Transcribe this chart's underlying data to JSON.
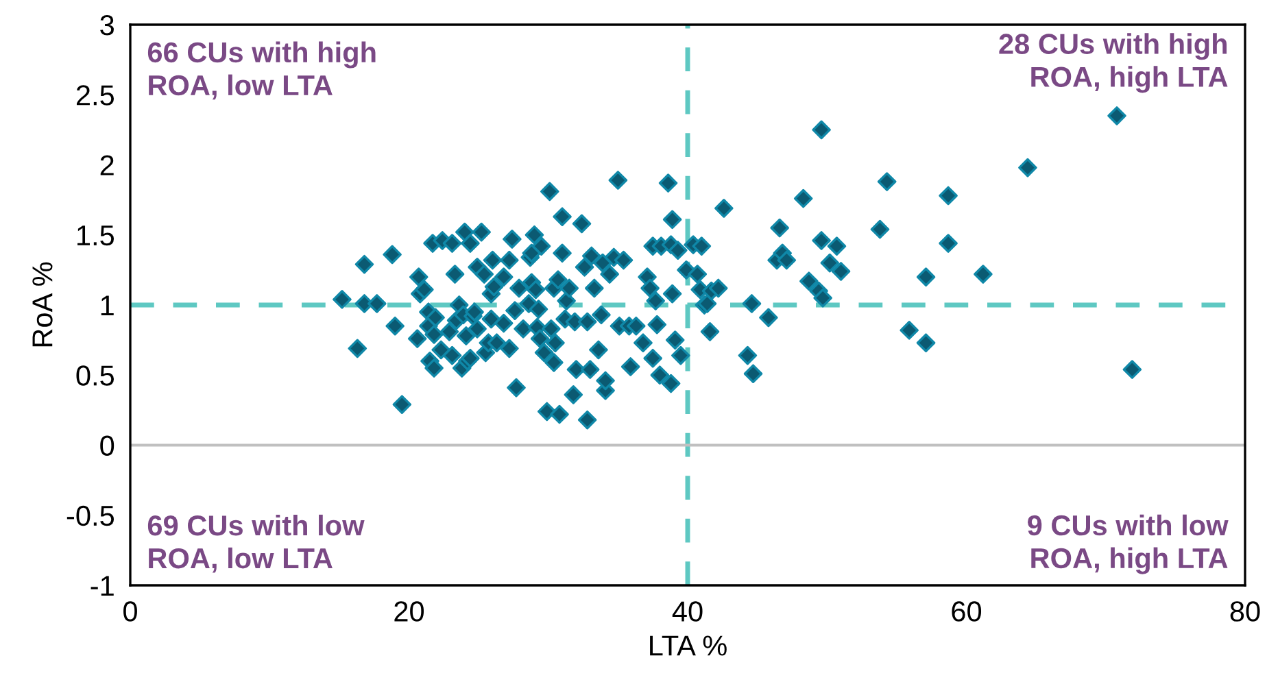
{
  "chart_data": {
    "type": "scatter",
    "xlabel": "LTA %",
    "ylabel": "RoA %",
    "xlim": [
      0,
      80
    ],
    "xticks": [
      0,
      20,
      40,
      60,
      80
    ],
    "ylim": [
      -1,
      3
    ],
    "yticks": [
      -1,
      -0.5,
      0,
      0.5,
      1,
      1.5,
      2,
      2.5,
      3
    ],
    "grid": false,
    "marker": "diamond",
    "series": [
      {
        "color": "#0b5a72",
        "x": [
          15.2,
          16.3,
          16.8,
          16.8,
          17.7,
          18.8,
          19.0,
          19.5,
          20.6,
          20.7,
          20.8,
          21.1,
          21.4,
          21.4,
          21.5,
          21.8,
          21.7,
          21.8,
          21.9,
          22.3,
          22.4,
          22.9,
          23.1,
          23.1,
          23.3,
          23.4,
          23.6,
          23.8,
          23.9,
          24.0,
          24.1,
          24.2,
          24.4,
          24.4,
          24.6,
          24.7,
          24.9,
          24.9,
          25.2,
          25.4,
          25.5,
          25.7,
          25.9,
          25.9,
          26.0,
          26.1,
          26.3,
          26.8,
          26.8,
          27.2,
          27.2,
          27.4,
          27.6,
          27.7,
          27.9,
          28.2,
          28.6,
          28.7,
          28.8,
          28.8,
          29.0,
          29.1,
          29.2,
          29.3,
          29.4,
          29.5,
          29.7,
          29.9,
          30.1,
          30.2,
          30.4,
          30.4,
          30.5,
          30.7,
          30.8,
          31.0,
          31.0,
          31.2,
          31.3,
          31.5,
          31.8,
          31.9,
          32.0,
          32.4,
          32.6,
          32.8,
          32.8,
          33.0,
          33.1,
          33.3,
          33.6,
          33.8,
          33.9,
          34.1,
          34.1,
          34.4,
          34.7,
          35.0,
          35.1,
          35.4,
          35.8,
          35.9,
          36.3,
          36.8,
          37.1,
          37.3,
          37.5,
          37.5,
          37.7,
          37.8,
          38.0,
          38.1,
          38.6,
          38.8,
          38.8,
          38.9,
          38.9,
          39.1,
          39.3,
          39.5,
          39.9,
          40.4,
          40.7,
          40.9,
          41.0,
          41.2,
          41.4,
          41.6,
          41.7,
          42.2,
          42.6,
          44.6,
          44.3,
          44.7,
          45.8,
          46.4,
          46.6,
          46.8,
          47.1,
          48.3,
          48.7,
          49.4,
          49.6,
          49.6,
          49.7,
          50.2,
          50.7,
          51.0,
          53.8,
          54.3,
          55.9,
          57.1,
          57.1,
          58.7,
          58.7,
          61.2,
          64.4,
          70.8,
          71.9
        ],
        "values": [
          1.04,
          0.69,
          1.29,
          1.01,
          1.01,
          1.36,
          0.85,
          0.29,
          0.76,
          1.2,
          1.08,
          1.11,
          0.95,
          0.85,
          0.6,
          0.55,
          1.44,
          0.79,
          0.91,
          0.68,
          1.46,
          0.81,
          1.44,
          0.64,
          1.22,
          0.89,
          1.0,
          0.55,
          0.93,
          1.52,
          0.78,
          0.6,
          0.62,
          1.44,
          0.92,
          0.95,
          1.27,
          0.83,
          1.52,
          1.22,
          0.66,
          0.73,
          0.9,
          1.08,
          1.32,
          1.13,
          0.73,
          1.2,
          0.87,
          1.32,
          0.69,
          1.47,
          0.96,
          0.41,
          1.12,
          0.83,
          1.01,
          1.34,
          1.37,
          1.16,
          1.5,
          1.11,
          0.84,
          0.97,
          0.76,
          1.42,
          0.66,
          0.24,
          1.81,
          0.83,
          1.12,
          0.59,
          0.73,
          1.18,
          0.22,
          1.63,
          1.37,
          0.9,
          1.03,
          1.12,
          0.36,
          0.88,
          0.54,
          1.58,
          1.27,
          0.88,
          0.18,
          0.54,
          1.35,
          1.12,
          0.68,
          0.93,
          1.3,
          0.39,
          0.46,
          1.22,
          1.34,
          1.89,
          0.85,
          1.32,
          0.85,
          0.56,
          0.85,
          0.73,
          1.2,
          1.12,
          0.62,
          1.42,
          1.03,
          0.86,
          0.5,
          1.42,
          1.87,
          1.43,
          0.44,
          1.08,
          1.61,
          0.75,
          1.39,
          0.64,
          1.25,
          1.43,
          1.22,
          1.11,
          1.42,
          1.0,
          1.01,
          0.81,
          1.1,
          1.12,
          1.69,
          1.01,
          0.64,
          0.51,
          0.91,
          1.32,
          1.55,
          1.37,
          1.32,
          1.76,
          1.17,
          1.1,
          2.25,
          1.46,
          1.05,
          1.3,
          1.42,
          1.24,
          1.54,
          1.88,
          0.82,
          0.73,
          1.2,
          1.78,
          1.44,
          1.22,
          1.98,
          2.35,
          0.54
        ]
      }
    ],
    "ref_lines": [
      {
        "axis": "x",
        "value": 40,
        "color": "#5ec8c2",
        "line_style": "dashed"
      },
      {
        "axis": "y",
        "value": 1,
        "color": "#5ec8c2",
        "line_style": "dashed"
      },
      {
        "axis": "y",
        "value": 0,
        "color": "#c0c0c0",
        "line_style": "solid"
      }
    ],
    "annotations": [
      "66 CUs with high\nROA, low LTA",
      "28 CUs with high\nROA, high LTA",
      "69 CUs with low\nROA, low LTA",
      "9 CUs with low\nROA, high LTA"
    ]
  }
}
